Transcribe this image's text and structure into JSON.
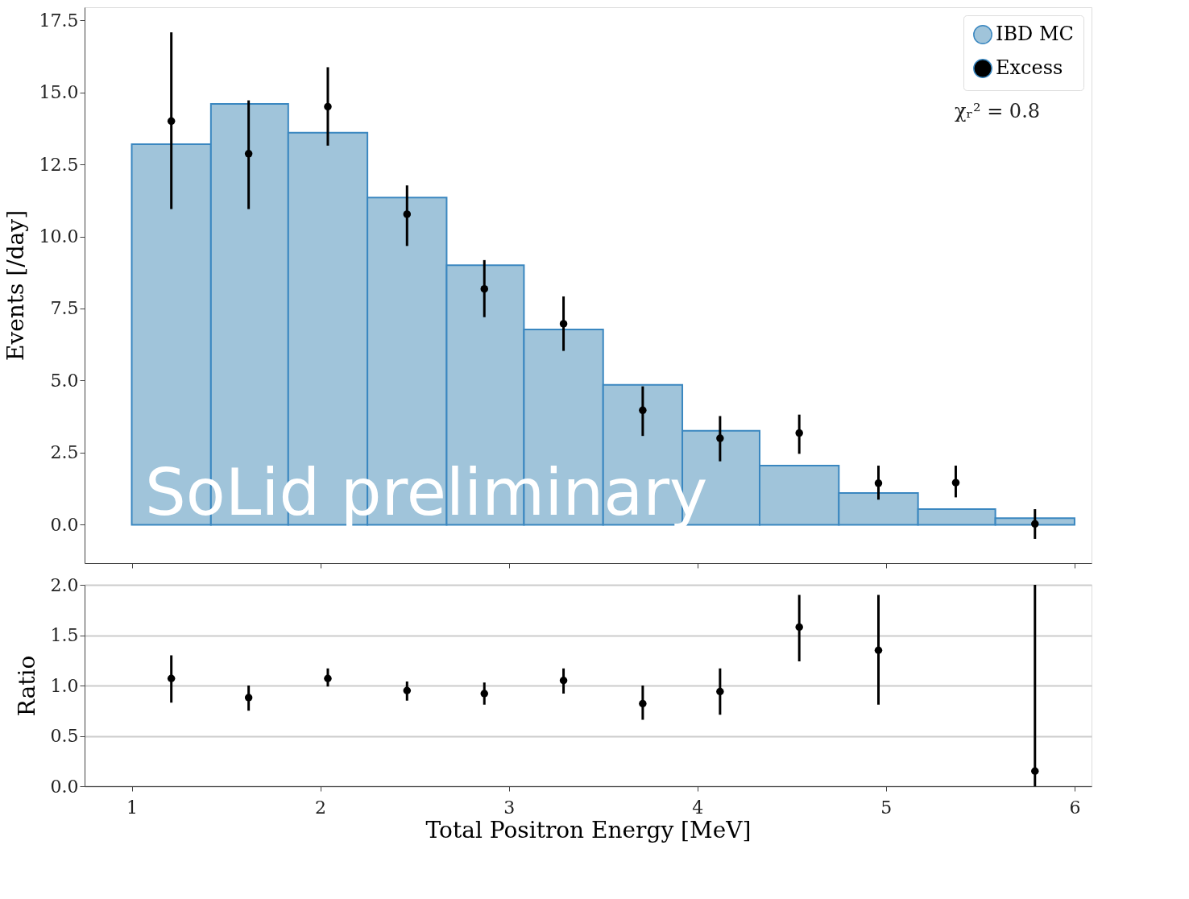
{
  "chart_data": [
    {
      "type": "histogram",
      "ylabel": "Events [/day]",
      "xlim": [
        0.75,
        6.09
      ],
      "ylim": [
        -1.33,
        17.95
      ],
      "xticks": [
        {
          "value": 1,
          "label": null
        },
        {
          "value": 2,
          "label": null
        },
        {
          "value": 3,
          "label": null
        },
        {
          "value": 4,
          "label": null
        },
        {
          "value": 5,
          "label": null
        },
        {
          "value": 6,
          "label": null
        }
      ],
      "yticks": [
        {
          "value": 0,
          "label": "0.0"
        },
        {
          "value": 2.5,
          "label": "2.5"
        },
        {
          "value": 5,
          "label": "5.0"
        },
        {
          "value": 7.5,
          "label": "7.5"
        },
        {
          "value": 10,
          "label": "10.0"
        },
        {
          "value": 12.5,
          "label": "12.5"
        },
        {
          "value": 15,
          "label": "15.0"
        },
        {
          "value": 17.5,
          "label": "17.5"
        }
      ],
      "tick_labels": "y",
      "legend": "top right",
      "grid": false,
      "annotations": [
        "χᵣ² = 0.8",
        "SoLid preliminary"
      ],
      "series": [
        {
          "name": "IBD MC",
          "type": "histogram",
          "color": "#a0c4da",
          "bins": [
            1.0,
            1.42,
            1.83,
            2.25,
            2.67,
            3.08,
            3.5,
            3.92,
            4.33,
            4.75,
            5.17,
            5.58,
            6.0
          ],
          "values": [
            13.2,
            14.6,
            13.6,
            11.35,
            9.0,
            6.77,
            4.85,
            3.26,
            2.05,
            1.1,
            0.54,
            0.23
          ]
        },
        {
          "name": "Excess",
          "type": "scatter",
          "color": "#000000",
          "marker": "circle",
          "x": [
            1.21,
            1.62,
            2.04,
            2.46,
            2.87,
            3.29,
            3.71,
            4.12,
            4.54,
            4.96,
            5.37,
            5.79
          ],
          "values": [
            14.0,
            12.87,
            14.5,
            10.77,
            8.18,
            6.97,
            3.97,
            3.0,
            3.18,
            1.44,
            1.46,
            0.03
          ],
          "errors": [
            [
              10.95,
              17.08
            ],
            [
              10.95,
              14.72
            ],
            [
              13.15,
              15.87
            ],
            [
              9.67,
              11.77
            ],
            [
              7.2,
              9.18
            ],
            [
              6.03,
              7.92
            ],
            [
              3.08,
              4.8
            ],
            [
              2.2,
              3.77
            ],
            [
              2.46,
              3.82
            ],
            [
              0.87,
              2.05
            ],
            [
              0.95,
              2.05
            ],
            [
              -0.49,
              0.54
            ]
          ]
        }
      ]
    },
    {
      "type": "scatter",
      "xlabel": "Total Positron Energy [MeV]",
      "ylabel": "Ratio",
      "xlim": [
        0.75,
        6.09
      ],
      "ylim": [
        0,
        2.0
      ],
      "xticks": [
        1,
        2,
        3,
        4,
        5,
        6
      ],
      "yticks": [
        {
          "value": 0,
          "label": "0.0"
        },
        {
          "value": 0.5,
          "label": "0.5"
        },
        {
          "value": 1,
          "label": "1.0"
        },
        {
          "value": 1.5,
          "label": "1.5"
        },
        {
          "value": 2,
          "label": "2.0"
        }
      ],
      "grid": "y",
      "marker": "circle",
      "color": "#000000",
      "x": [
        1.21,
        1.62,
        2.04,
        2.46,
        2.87,
        3.29,
        3.71,
        4.12,
        4.54,
        4.96,
        5.37,
        5.79
      ],
      "values": [
        1.07,
        0.88,
        1.07,
        0.95,
        0.92,
        1.05,
        0.82,
        0.94,
        1.58,
        1.35,
        null,
        0.15
      ],
      "errors": [
        [
          0.83,
          1.3
        ],
        [
          0.75,
          1.0
        ],
        [
          0.99,
          1.17
        ],
        [
          0.85,
          1.04
        ],
        [
          0.81,
          1.03
        ],
        [
          0.92,
          1.17
        ],
        [
          0.66,
          1.0
        ],
        [
          0.71,
          1.17
        ],
        [
          1.24,
          1.9
        ],
        [
          0.81,
          1.9
        ],
        null,
        [
          0.0,
          2.0
        ]
      ]
    }
  ]
}
